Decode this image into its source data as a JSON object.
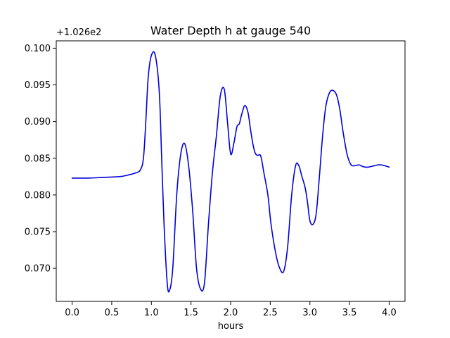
{
  "chart_data": {
    "type": "line",
    "title": "Water Depth h at gauge 540",
    "xlabel": "hours",
    "ylabel": "",
    "y_offset_label": "+1.026e2",
    "xlim": [
      -0.2,
      4.2
    ],
    "ylim": [
      0.0655,
      0.101
    ],
    "x_ticks": [
      0.0,
      0.5,
      1.0,
      1.5,
      2.0,
      2.5,
      3.0,
      3.5,
      4.0
    ],
    "x_tick_labels": [
      "0.0",
      "0.5",
      "1.0",
      "1.5",
      "2.0",
      "2.5",
      "3.0",
      "3.5",
      "4.0"
    ],
    "y_ticks": [
      0.07,
      0.075,
      0.08,
      0.085,
      0.09,
      0.095,
      0.1
    ],
    "y_tick_labels": [
      "0.070",
      "0.075",
      "0.080",
      "0.085",
      "0.090",
      "0.095",
      "0.100"
    ],
    "grid": false,
    "legend": "none",
    "series": [
      {
        "color": "#0000dd",
        "x": [
          0.0,
          0.2,
          0.4,
          0.6,
          0.7,
          0.8,
          0.86,
          0.9,
          0.93,
          0.96,
          1.0,
          1.05,
          1.1,
          1.13,
          1.16,
          1.2,
          1.23,
          1.27,
          1.32,
          1.37,
          1.42,
          1.47,
          1.52,
          1.57,
          1.62,
          1.67,
          1.72,
          1.77,
          1.82,
          1.87,
          1.92,
          1.96,
          2.0,
          2.04,
          2.08,
          2.11,
          2.14,
          2.18,
          2.22,
          2.25,
          2.28,
          2.31,
          2.34,
          2.38,
          2.42,
          2.47,
          2.51,
          2.57,
          2.62,
          2.67,
          2.72,
          2.77,
          2.82,
          2.86,
          2.9,
          2.94,
          2.97,
          3.0,
          3.04,
          3.08,
          3.12,
          3.16,
          3.2,
          3.25,
          3.3,
          3.34,
          3.38,
          3.42,
          3.47,
          3.52,
          3.57,
          3.62,
          3.66,
          3.7,
          3.74,
          3.78,
          3.82,
          3.86,
          3.9,
          3.94,
          3.97,
          4.0
        ],
        "y": [
          0.0823,
          0.0823,
          0.0824,
          0.0825,
          0.0827,
          0.083,
          0.0834,
          0.085,
          0.09,
          0.096,
          0.099,
          0.099,
          0.094,
          0.085,
          0.076,
          0.068,
          0.067,
          0.07,
          0.08,
          0.0855,
          0.087,
          0.084,
          0.078,
          0.07,
          0.0672,
          0.068,
          0.076,
          0.083,
          0.088,
          0.0935,
          0.0944,
          0.09,
          0.0856,
          0.087,
          0.0893,
          0.0897,
          0.091,
          0.0922,
          0.0912,
          0.089,
          0.087,
          0.0857,
          0.0854,
          0.0853,
          0.083,
          0.08,
          0.076,
          0.072,
          0.07,
          0.0696,
          0.073,
          0.08,
          0.084,
          0.084,
          0.0825,
          0.081,
          0.079,
          0.0765,
          0.076,
          0.0775,
          0.0825,
          0.088,
          0.092,
          0.094,
          0.0942,
          0.0935,
          0.0915,
          0.0885,
          0.0855,
          0.0841,
          0.084,
          0.0841,
          0.0839,
          0.0838,
          0.0838,
          0.0839,
          0.084,
          0.0841,
          0.0841,
          0.084,
          0.0839,
          0.0838
        ]
      }
    ]
  }
}
